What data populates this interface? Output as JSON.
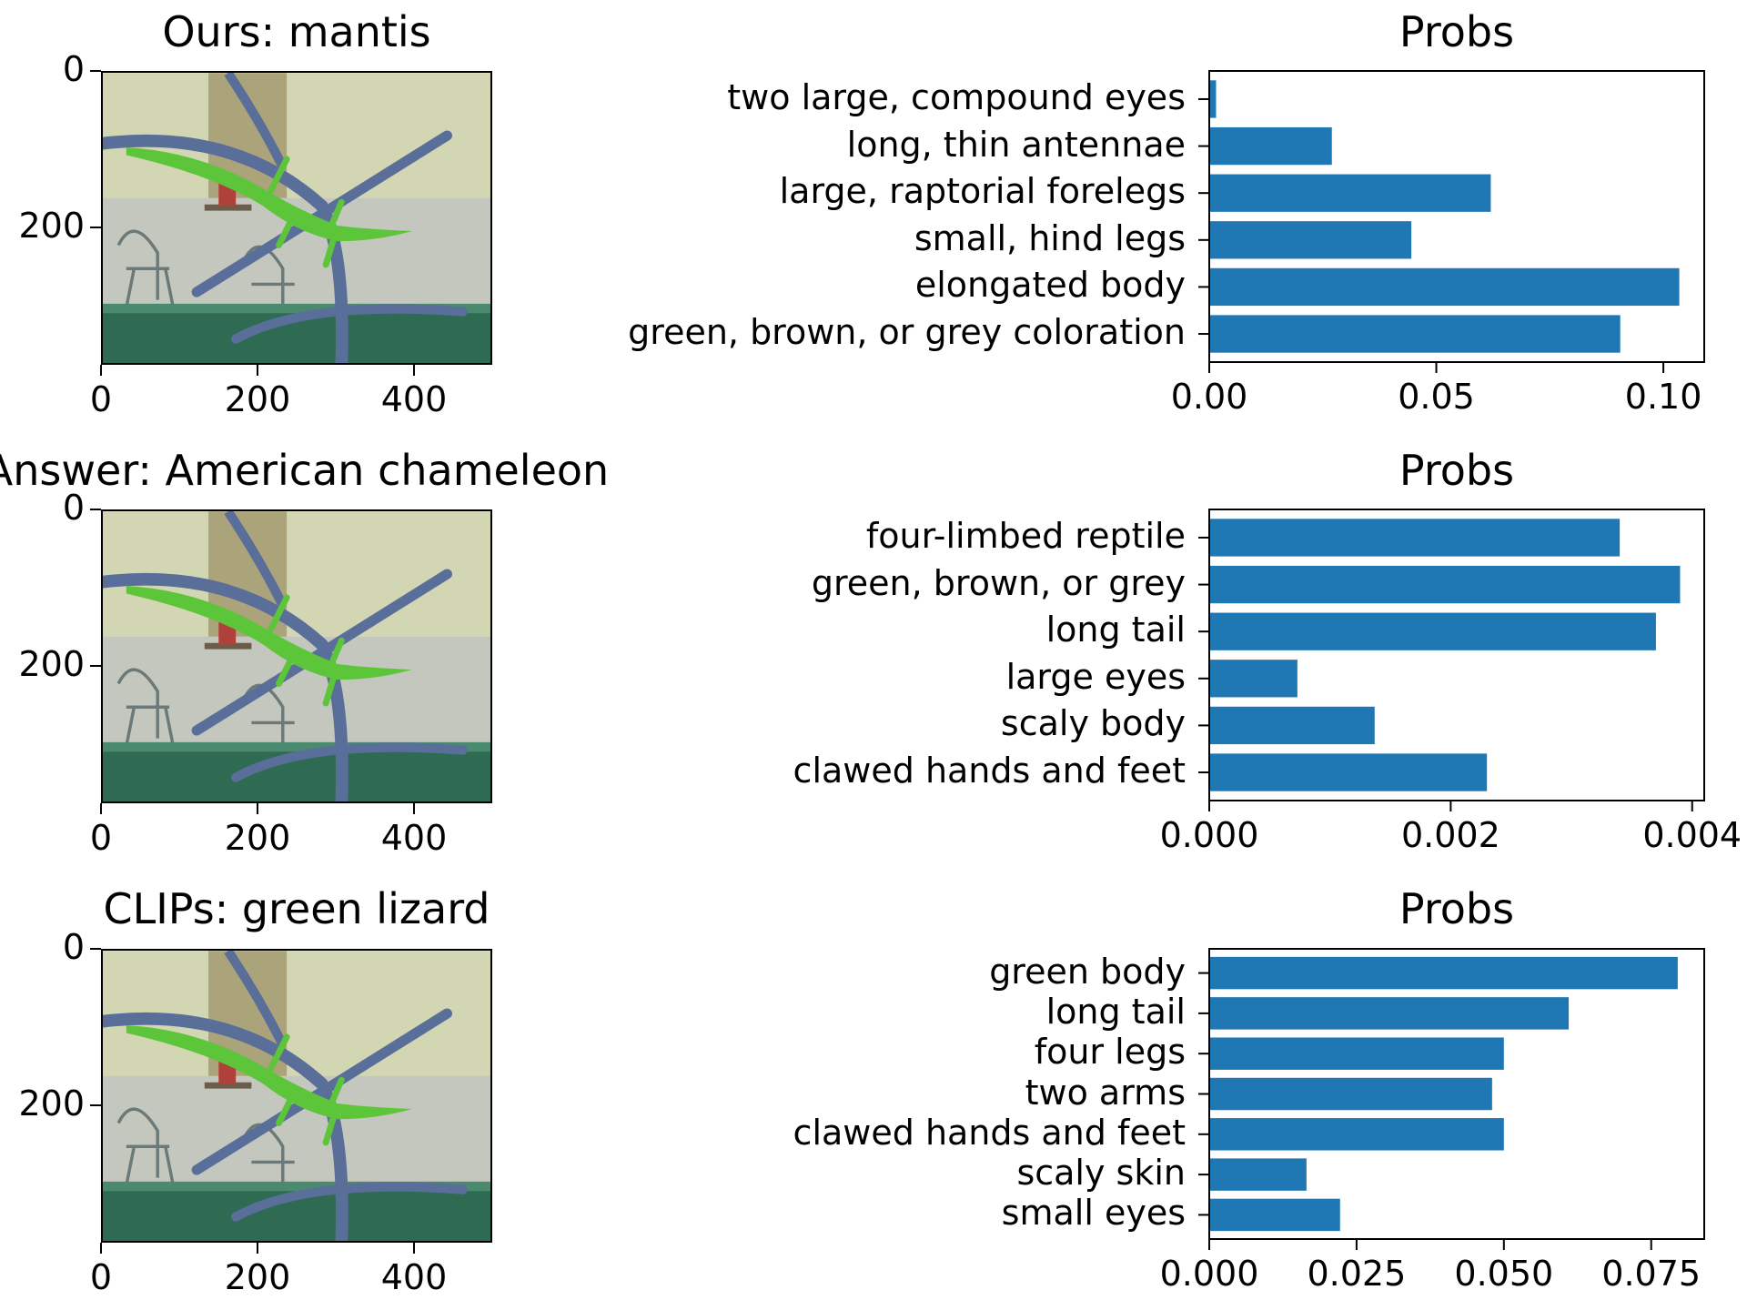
{
  "chart_data": [
    {
      "type": "image",
      "title": "Ours: mantis",
      "yticks": [
        "0",
        "200"
      ],
      "xticks": [
        "0",
        "200",
        "400"
      ],
      "xlim": [
        0,
        500
      ],
      "ylim": [
        375,
        0
      ]
    },
    {
      "type": "bar",
      "orientation": "horizontal",
      "title": "Probs",
      "categories": [
        "two large, compound eyes",
        "long, thin antennae",
        "large, raptorial forelegs",
        "small, hind legs",
        "elongated body",
        "green, brown, or grey coloration"
      ],
      "values": [
        0.0015,
        0.027,
        0.062,
        0.0445,
        0.1035,
        0.0905
      ],
      "xticks": [
        "0.00",
        "0.05",
        "0.10"
      ],
      "xlim": [
        0,
        0.109
      ],
      "color": "#1f77b4"
    },
    {
      "type": "image",
      "title": "Answer: American chameleon",
      "yticks": [
        "0",
        "200"
      ],
      "xticks": [
        "0",
        "200",
        "400"
      ],
      "xlim": [
        0,
        500
      ],
      "ylim": [
        375,
        0
      ]
    },
    {
      "type": "bar",
      "orientation": "horizontal",
      "title": "Probs",
      "categories": [
        "four-limbed reptile",
        "green, brown, or grey",
        "long tail",
        "large eyes",
        "scaly body",
        "clawed hands and feet"
      ],
      "values": [
        0.0034,
        0.0039,
        0.0037,
        0.00073,
        0.00137,
        0.0023
      ],
      "xticks": [
        "0.000",
        "0.002",
        "0.004"
      ],
      "xlim": [
        0,
        0.0041
      ],
      "color": "#1f77b4"
    },
    {
      "type": "image",
      "title": "CLIPs: green lizard",
      "yticks": [
        "0",
        "200"
      ],
      "xticks": [
        "0",
        "200",
        "400"
      ],
      "xlim": [
        0,
        500
      ],
      "ylim": [
        375,
        0
      ]
    },
    {
      "type": "bar",
      "orientation": "horizontal",
      "title": "Probs",
      "categories": [
        "green body",
        "long tail",
        "four legs",
        "two arms",
        "clawed hands and feet",
        "scaly skin",
        "small eyes"
      ],
      "values": [
        0.0795,
        0.061,
        0.05,
        0.048,
        0.05,
        0.0165,
        0.0222
      ],
      "xticks": [
        "0.000",
        "0.025",
        "0.050",
        "0.075"
      ],
      "xlim": [
        0,
        0.084
      ],
      "color": "#1f77b4"
    }
  ],
  "colors": {
    "bar": "#1f77b4",
    "axis": "#000000",
    "lizard": "#5cc53a",
    "branch": "#5a6e9a",
    "wall": "#dedec8",
    "ledge": "#2e6b52"
  }
}
